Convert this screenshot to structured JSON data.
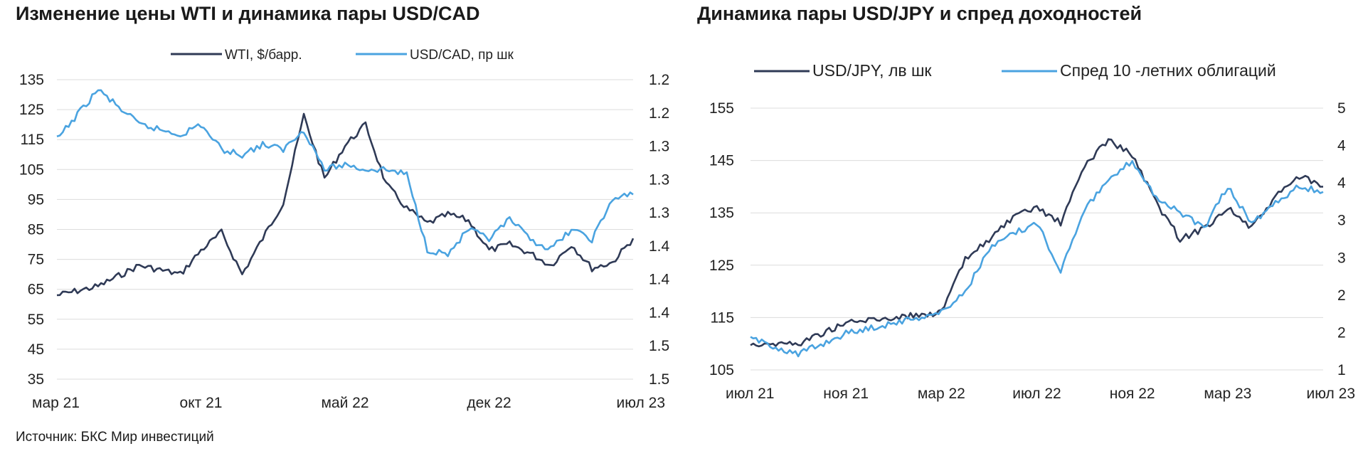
{
  "titles": {
    "left": "Изменение цены WTI и динамика пары USD/CAD",
    "right": "Динамика пары USD/JPY и спред доходностей"
  },
  "source": "Источник: БКС Мир инвестиций",
  "colors": {
    "dark": "#2f3a56",
    "light": "#4aa3e0",
    "grid": "#dcdcdc"
  },
  "chart_data": [
    {
      "type": "line",
      "title": "Изменение цены WTI и динамика пары USD/CAD",
      "x_tick_labels": [
        "мар 21",
        "окт 21",
        "май 22",
        "дек 22",
        "июл 23"
      ],
      "y_left_ticks": [
        "135",
        "125",
        "115",
        "105",
        "95",
        "85",
        "75",
        "65",
        "55",
        "45",
        "35"
      ],
      "y_right_ticks": [
        "1.2",
        "1.2",
        "1.3",
        "1.3",
        "1.3",
        "1.4",
        "1.4",
        "1.4",
        "1.5",
        "1.5"
      ],
      "ylim_left": [
        35,
        135
      ],
      "ylim_right": [
        1.2,
        1.5
      ],
      "x": [
        "2021-03",
        "2021-05",
        "2021-07",
        "2021-09",
        "2021-10",
        "2021-11",
        "2021-12",
        "2022-01",
        "2022-02",
        "2022-03",
        "2022-04",
        "2022-05",
        "2022-06",
        "2022-07",
        "2022-08",
        "2022-09",
        "2022-10",
        "2022-11",
        "2022-12",
        "2023-01",
        "2023-02",
        "2023-03",
        "2023-04",
        "2023-05",
        "2023-06",
        "2023-07"
      ],
      "series": [
        {
          "name": "WTI, $/барр.",
          "axis": "left",
          "color": "#2f3a56",
          "values": [
            63,
            66,
            73,
            70,
            78,
            84,
            70,
            82,
            94,
            123,
            102,
            113,
            120,
            100,
            92,
            87,
            90,
            88,
            78,
            80,
            77,
            73,
            80,
            72,
            74,
            82
          ]
        },
        {
          "name": "USD/CAD, пр шк",
          "axis": "right",
          "color": "#4aa3e0",
          "values": [
            1.26,
            1.21,
            1.245,
            1.255,
            1.245,
            1.27,
            1.275,
            1.265,
            1.27,
            1.25,
            1.29,
            1.285,
            1.29,
            1.29,
            1.295,
            1.37,
            1.375,
            1.35,
            1.36,
            1.34,
            1.36,
            1.37,
            1.35,
            1.36,
            1.32,
            1.315
          ]
        }
      ],
      "legend": "top"
    },
    {
      "type": "line",
      "title": "Динамика пары USD/JPY и спред доходностей",
      "x_tick_labels": [
        "июл 21",
        "ноя 21",
        "мар 22",
        "июл 22",
        "ноя 22",
        "мар 23",
        "июл 23"
      ],
      "y_left_ticks": [
        "155",
        "145",
        "135",
        "125",
        "115",
        "105"
      ],
      "y_right_ticks": [
        "5",
        "4",
        "4",
        "3",
        "3",
        "2",
        "2",
        "1"
      ],
      "ylim_left": [
        105,
        155
      ],
      "x": [
        "2021-07",
        "2021-09",
        "2021-11",
        "2022-01",
        "2022-03",
        "2022-04",
        "2022-05",
        "2022-06",
        "2022-07",
        "2022-08",
        "2022-09",
        "2022-10",
        "2022-11",
        "2022-12",
        "2023-01",
        "2023-02",
        "2023-03",
        "2023-04",
        "2023-05",
        "2023-06",
        "2023-07"
      ],
      "series": [
        {
          "name": "USD/JPY, лв шк",
          "axis": "left",
          "color": "#2f3a56",
          "values": [
            110,
            110,
            114,
            115,
            116,
            126,
            130,
            134,
            136,
            133,
            144,
            149,
            146,
            137,
            130,
            132,
            136,
            132,
            138,
            142,
            140
          ]
        },
        {
          "name": "Спред 10 -летних облигаций",
          "axis": "left-scaled",
          "color": "#4aa3e0",
          "values": [
            111,
            108,
            112,
            114,
            116,
            120,
            128,
            131,
            133,
            124,
            136,
            141,
            145,
            138,
            135,
            132,
            140,
            133,
            137,
            140,
            139
          ]
        }
      ],
      "legend": "top"
    }
  ]
}
